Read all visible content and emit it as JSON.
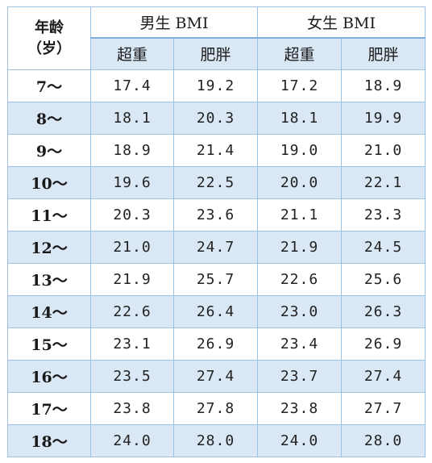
{
  "table": {
    "age_header_line1": "年龄",
    "age_header_line2": "（岁）",
    "male_group": "男生 BMI",
    "female_group": "女生 BMI",
    "sub_headers": [
      "超重",
      "肥胖",
      "超重",
      "肥胖"
    ],
    "rows": [
      {
        "age": "7～",
        "values": [
          "17.4",
          "19.2",
          "17.2",
          "18.9"
        ]
      },
      {
        "age": "8～",
        "values": [
          "18.1",
          "20.3",
          "18.1",
          "19.9"
        ]
      },
      {
        "age": "9～",
        "values": [
          "18.9",
          "21.4",
          "19.0",
          "21.0"
        ]
      },
      {
        "age": "10～",
        "values": [
          "19.6",
          "22.5",
          "20.0",
          "22.1"
        ]
      },
      {
        "age": "11～",
        "values": [
          "20.3",
          "23.6",
          "21.1",
          "23.3"
        ]
      },
      {
        "age": "12～",
        "values": [
          "21.0",
          "24.7",
          "21.9",
          "24.5"
        ]
      },
      {
        "age": "13～",
        "values": [
          "21.9",
          "25.7",
          "22.6",
          "25.6"
        ]
      },
      {
        "age": "14～",
        "values": [
          "22.6",
          "26.4",
          "23.0",
          "26.3"
        ]
      },
      {
        "age": "15～",
        "values": [
          "23.1",
          "26.9",
          "23.4",
          "26.9"
        ]
      },
      {
        "age": "16～",
        "values": [
          "23.5",
          "27.4",
          "23.7",
          "27.4"
        ]
      },
      {
        "age": "17～",
        "values": [
          "23.8",
          "27.8",
          "23.8",
          "27.7"
        ]
      },
      {
        "age": "18～",
        "values": [
          "24.0",
          "28.0",
          "24.0",
          "28.0"
        ]
      }
    ]
  },
  "colors": {
    "border": "#9dc3e6",
    "stripe": "#dae8f6",
    "text": "#1a1a1a"
  }
}
